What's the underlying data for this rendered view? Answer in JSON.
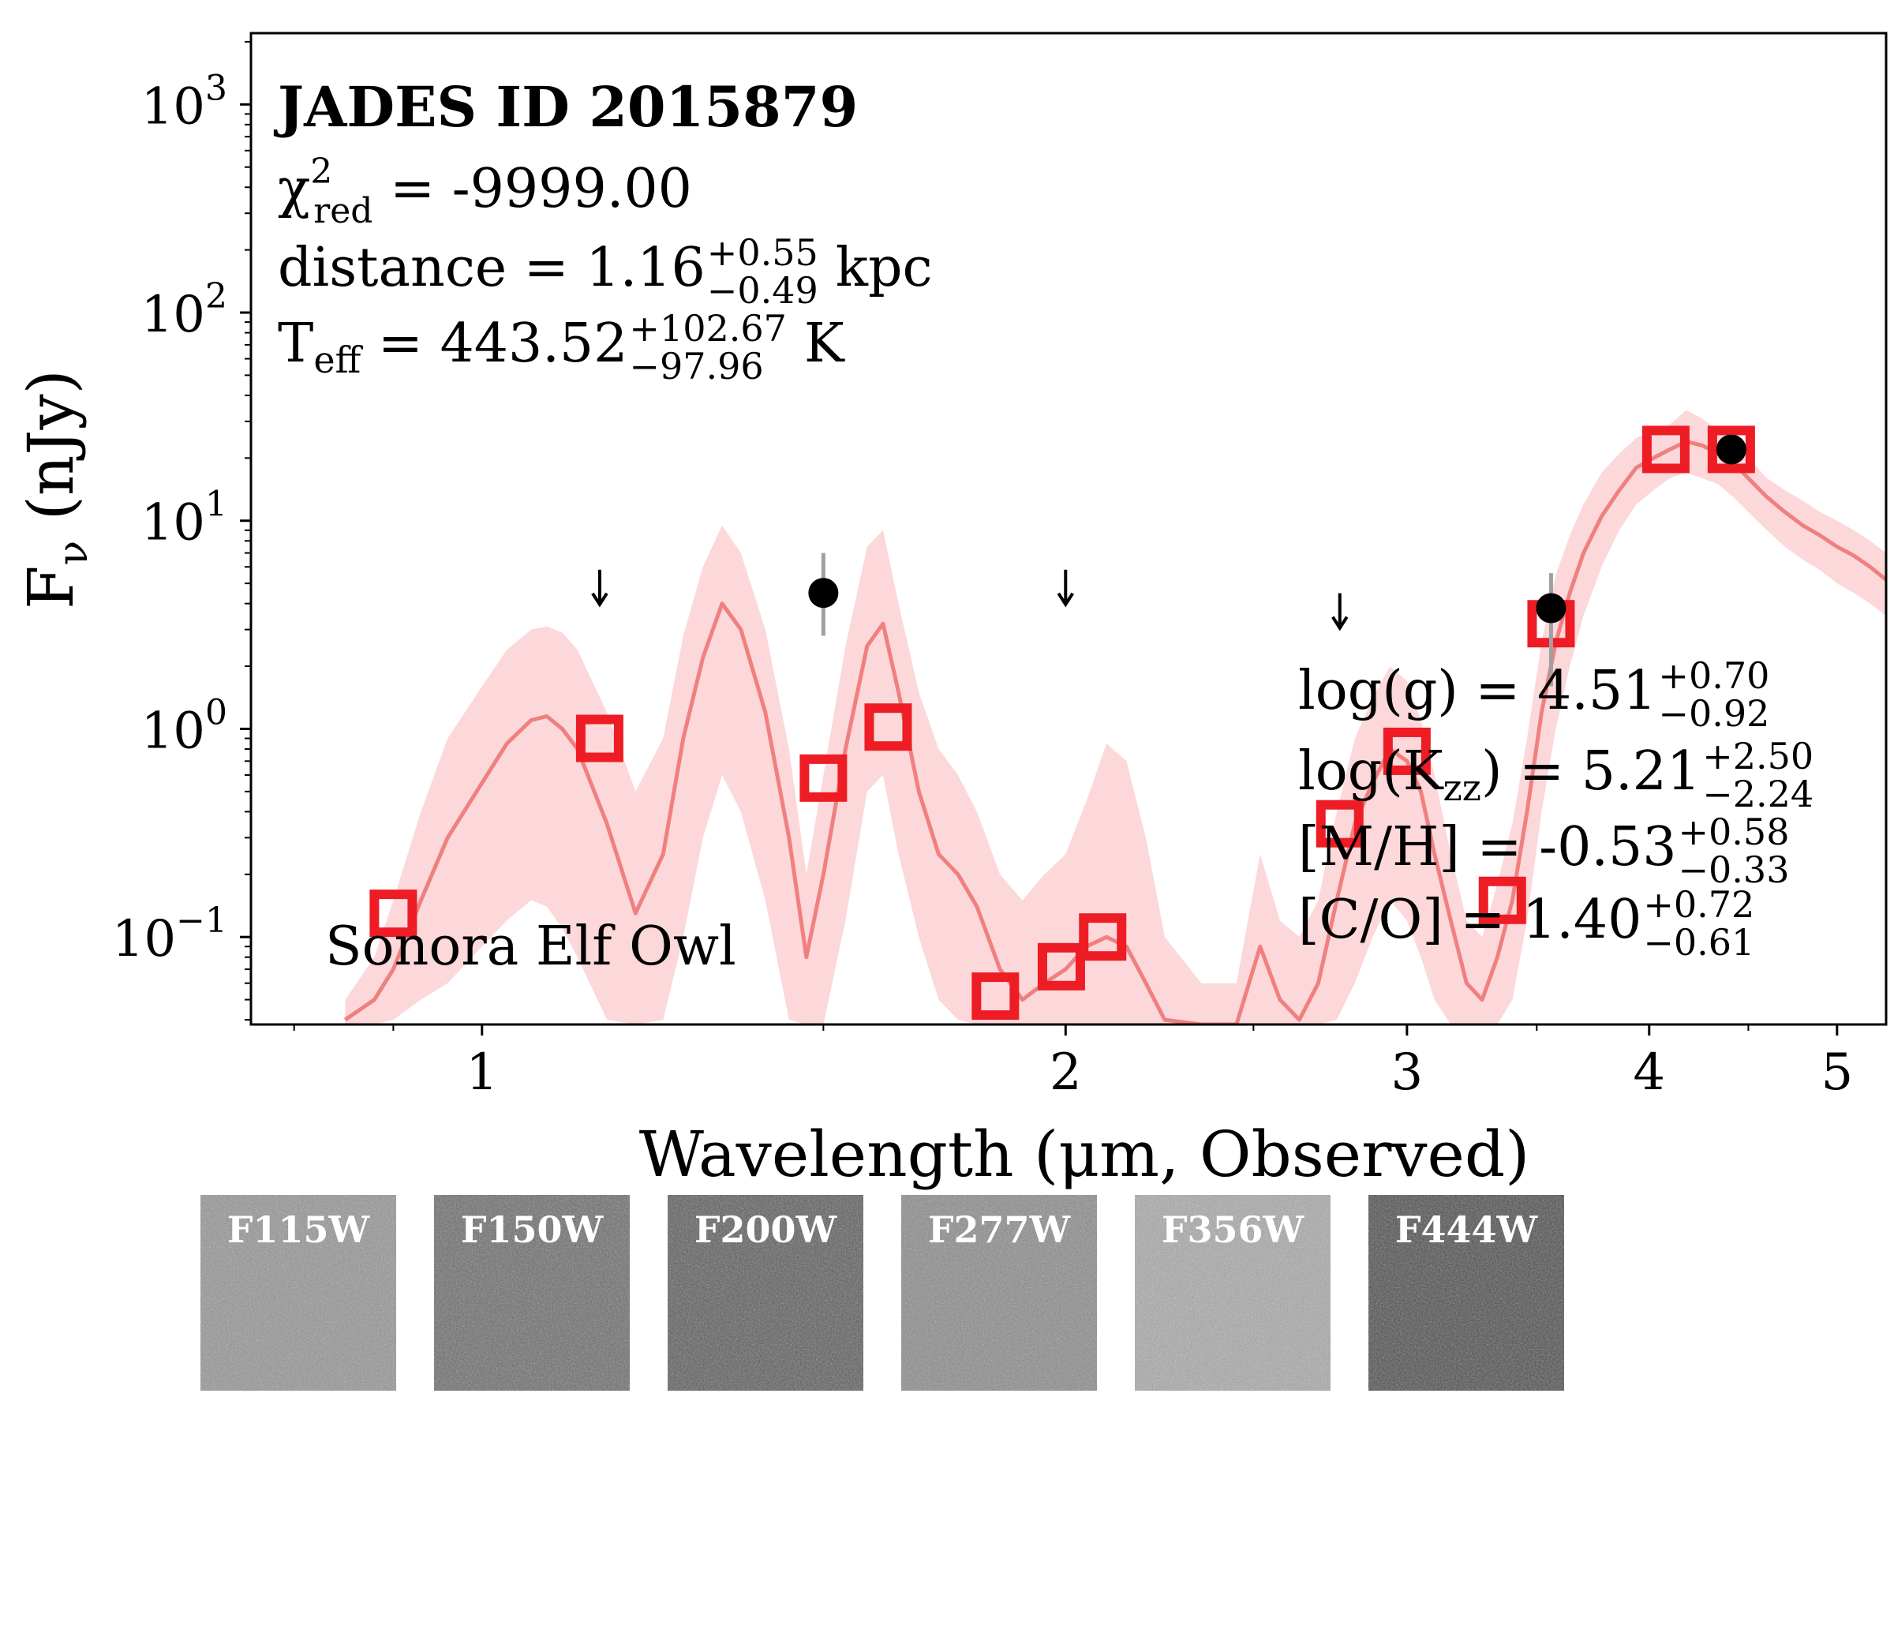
{
  "chart_data": {
    "type": "scatter",
    "title": "JADES ID 2015879",
    "xlabel": "Wavelength (μm, Observed)",
    "ylabel": "F",
    "ylabel_sub": "ν",
    "ylabel_unit": "(nJy)",
    "xscale": "log",
    "yscale": "log",
    "xlim": [
      0.76,
      5.3
    ],
    "ylim": [
      0.038,
      2200
    ],
    "xticks": [
      {
        "value": 1,
        "label": "1"
      },
      {
        "value": 2,
        "label": "2"
      },
      {
        "value": 3,
        "label": "3"
      },
      {
        "value": 4,
        "label": "4"
      },
      {
        "value": 5,
        "label": "5"
      }
    ],
    "yticks": [
      {
        "value": 0.1,
        "base": "10",
        "exp": "−1"
      },
      {
        "value": 1,
        "base": "10",
        "exp": "0"
      },
      {
        "value": 10,
        "base": "10",
        "exp": "1"
      },
      {
        "value": 100,
        "base": "10",
        "exp": "2"
      },
      {
        "value": 1000,
        "base": "10",
        "exp": "3"
      }
    ],
    "model_label": "Sonora Elf Owl",
    "fit_stats": {
      "chi2_label": "χ",
      "chi2_sub": "red",
      "chi2_sup": "2",
      "chi2_value": " = -9999.00",
      "distance_prefix": "distance = 1.16",
      "distance_plus": "+0.55",
      "distance_minus": "−0.49",
      "distance_unit": "kpc",
      "teff_prefix": "T",
      "teff_sub": "eff",
      "teff_value": " = 443.52",
      "teff_plus": "+102.67",
      "teff_minus": "−97.96",
      "teff_unit": "K"
    },
    "params": [
      {
        "label": "log(g) = 4.51",
        "plus": "+0.70",
        "minus": "−0.92"
      },
      {
        "label": "log(K",
        "label_sub": "zz",
        "label_end": ") = 5.21",
        "plus": "+2.50",
        "minus": "−2.24"
      },
      {
        "label": "[M/H] = -0.53",
        "plus": "+0.58",
        "minus": "−0.33"
      },
      {
        "label": "[C/O] = 1.40",
        "plus": "+0.72",
        "minus": "−0.61"
      }
    ],
    "model_photometry": [
      {
        "x": 0.9,
        "y": 0.13
      },
      {
        "x": 1.15,
        "y": 0.9
      },
      {
        "x": 1.5,
        "y": 0.58
      },
      {
        "x": 1.62,
        "y": 1.02
      },
      {
        "x": 1.84,
        "y": 0.052
      },
      {
        "x": 1.99,
        "y": 0.072
      },
      {
        "x": 2.09,
        "y": 0.1
      },
      {
        "x": 2.77,
        "y": 0.35
      },
      {
        "x": 3.0,
        "y": 0.78
      },
      {
        "x": 3.36,
        "y": 0.15
      },
      {
        "x": 3.56,
        "y": 3.2
      },
      {
        "x": 4.08,
        "y": 22
      },
      {
        "x": 4.41,
        "y": 22
      }
    ],
    "observed_detections": [
      {
        "x": 1.5,
        "y": 4.5,
        "err": [
          2.8,
          7.0
        ]
      },
      {
        "x": 3.56,
        "y": 3.8,
        "err": [
          1.6,
          5.6
        ]
      },
      {
        "x": 4.41,
        "y": 22,
        "err": [
          19,
          26
        ]
      }
    ],
    "upper_limits": [
      {
        "x": 1.15,
        "y": 4.8
      },
      {
        "x": 2.0,
        "y": 4.8
      },
      {
        "x": 2.77,
        "y": 3.7
      }
    ],
    "model_spectrum": {
      "x": [
        0.85,
        0.88,
        0.9,
        0.93,
        0.96,
        1.0,
        1.03,
        1.06,
        1.08,
        1.1,
        1.12,
        1.16,
        1.2,
        1.24,
        1.27,
        1.3,
        1.33,
        1.36,
        1.4,
        1.44,
        1.47,
        1.5,
        1.54,
        1.58,
        1.61,
        1.64,
        1.68,
        1.72,
        1.76,
        1.8,
        1.85,
        1.9,
        1.95,
        2.0,
        2.05,
        2.1,
        2.15,
        2.2,
        2.25,
        2.35,
        2.45,
        2.52,
        2.58,
        2.64,
        2.7,
        2.76,
        2.82,
        2.88,
        2.94,
        3.0,
        3.05,
        3.1,
        3.16,
        3.22,
        3.28,
        3.34,
        3.4,
        3.46,
        3.52,
        3.58,
        3.64,
        3.7,
        3.78,
        3.86,
        3.94,
        4.02,
        4.1,
        4.18,
        4.26,
        4.34,
        4.42,
        4.5,
        4.6,
        4.7,
        4.8,
        4.9,
        5.0,
        5.1,
        5.2,
        5.3
      ],
      "y": [
        0.04,
        0.05,
        0.07,
        0.15,
        0.3,
        0.55,
        0.85,
        1.1,
        1.15,
        1.0,
        0.8,
        0.35,
        0.13,
        0.25,
        0.9,
        2.2,
        4.0,
        3.0,
        1.2,
        0.3,
        0.08,
        0.2,
        0.8,
        2.5,
        3.2,
        1.5,
        0.5,
        0.25,
        0.2,
        0.14,
        0.07,
        0.05,
        0.06,
        0.07,
        0.09,
        0.1,
        0.09,
        0.06,
        0.04,
        0.03,
        0.035,
        0.09,
        0.05,
        0.04,
        0.06,
        0.15,
        0.35,
        0.55,
        0.8,
        0.7,
        0.5,
        0.25,
        0.12,
        0.06,
        0.05,
        0.08,
        0.15,
        0.4,
        1.2,
        2.6,
        4.5,
        7.0,
        10.5,
        14,
        18,
        20,
        22,
        24,
        23,
        21,
        19,
        16,
        13,
        11,
        9.5,
        8.5,
        7.5,
        6.8,
        6.0,
        5.2
      ],
      "upper": [
        0.05,
        0.08,
        0.15,
        0.4,
        0.9,
        1.6,
        2.4,
        3.0,
        3.1,
        2.9,
        2.4,
        1.2,
        0.5,
        0.9,
        2.8,
        6.0,
        9.5,
        7.0,
        3.0,
        0.8,
        0.2,
        0.6,
        2.5,
        7.5,
        9.0,
        4.0,
        1.5,
        0.8,
        0.6,
        0.4,
        0.2,
        0.15,
        0.2,
        0.25,
        0.45,
        0.85,
        0.7,
        0.3,
        0.1,
        0.06,
        0.06,
        0.25,
        0.12,
        0.1,
        0.15,
        0.4,
        0.9,
        1.4,
        2.0,
        1.7,
        1.1,
        0.6,
        0.25,
        0.12,
        0.1,
        0.18,
        0.35,
        0.9,
        2.6,
        5.5,
        8.5,
        12,
        17,
        21,
        25,
        27,
        29,
        34,
        31,
        27,
        24,
        20,
        16,
        14,
        12.5,
        11,
        10,
        9,
        8,
        7
      ],
      "lower": [
        0.038,
        0.038,
        0.04,
        0.05,
        0.06,
        0.09,
        0.12,
        0.15,
        0.14,
        0.11,
        0.08,
        0.04,
        0.038,
        0.04,
        0.1,
        0.3,
        0.6,
        0.4,
        0.15,
        0.04,
        0.038,
        0.038,
        0.12,
        0.5,
        0.6,
        0.25,
        0.1,
        0.05,
        0.04,
        0.038,
        0.038,
        0.038,
        0.038,
        0.038,
        0.038,
        0.038,
        0.038,
        0.038,
        0.038,
        0.038,
        0.038,
        0.038,
        0.038,
        0.038,
        0.038,
        0.04,
        0.06,
        0.1,
        0.15,
        0.12,
        0.08,
        0.05,
        0.038,
        0.038,
        0.038,
        0.038,
        0.05,
        0.12,
        0.4,
        1.0,
        2.0,
        3.5,
        6,
        9,
        12,
        14,
        16,
        17,
        16,
        15,
        13,
        11,
        9,
        7.5,
        6.5,
        5.8,
        5.0,
        4.5,
        4.0,
        3.5
      ]
    },
    "colors": {
      "model_line": "#f08080",
      "model_band": "#fcd6d8",
      "model_square": "#ee1c24",
      "observed": "#000000",
      "errorbar": "#a0a0a0"
    }
  },
  "stamps": [
    {
      "label": "F115W",
      "tone": 150
    },
    {
      "label": "F150W",
      "tone": 110
    },
    {
      "label": "F200W",
      "tone": 95
    },
    {
      "label": "F277W",
      "tone": 140
    },
    {
      "label": "F356W",
      "tone": 170
    },
    {
      "label": "F444W",
      "tone": 80
    }
  ]
}
